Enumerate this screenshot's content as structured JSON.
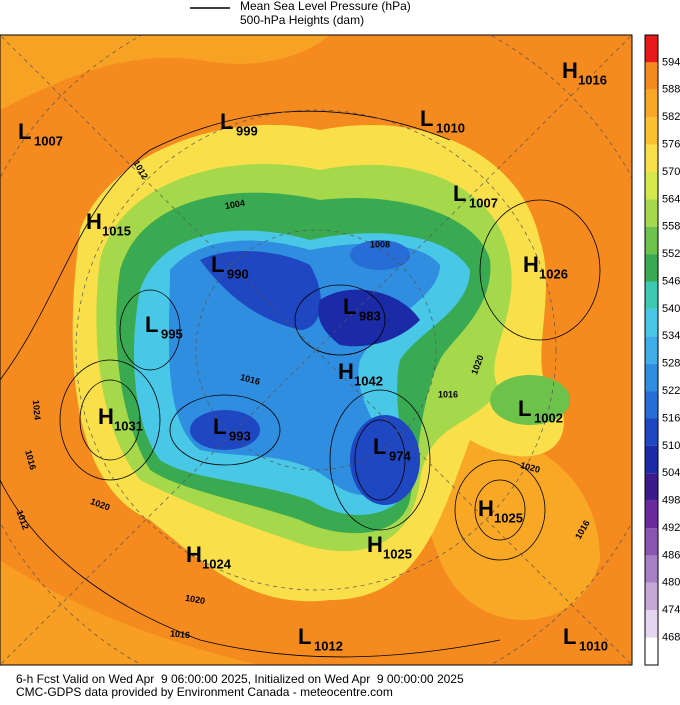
{
  "legend": {
    "lines": [
      "Mean Sea Level Pressure (hPa)",
      "500-hPa Heights (dam)"
    ]
  },
  "colorbar": {
    "ticks": [
      594,
      588,
      582,
      576,
      570,
      564,
      558,
      552,
      546,
      540,
      534,
      528,
      522,
      516,
      510,
      504,
      498,
      492,
      486,
      480,
      474,
      468
    ],
    "colors": [
      "#e8191b",
      "#f58a1f",
      "#f9a825",
      "#fbc02d",
      "#f9e04a",
      "#d6e94c",
      "#a6d84b",
      "#6cc24a",
      "#3aaa52",
      "#3ccab2",
      "#48c7e6",
      "#3fade8",
      "#2f8ee0",
      "#286cd6",
      "#1f47c2",
      "#1b2aa6",
      "#3b1a8c",
      "#6a2a9c",
      "#8a55b0",
      "#a77fc4",
      "#c4a8d6",
      "#e4d6ee"
    ]
  },
  "centers": [
    {
      "kind": "H",
      "value": 1016
    },
    {
      "kind": "L",
      "value": 1007
    },
    {
      "kind": "L",
      "value": 999
    },
    {
      "kind": "L",
      "value": 1010
    },
    {
      "kind": "L",
      "value": 1007
    },
    {
      "kind": "H",
      "value": 1015
    },
    {
      "kind": "H",
      "value": 1026
    },
    {
      "kind": "L",
      "value": 990
    },
    {
      "kind": "L",
      "value": 995
    },
    {
      "kind": "L",
      "value": 983
    },
    {
      "kind": "H",
      "value": 1042
    },
    {
      "kind": "H",
      "value": 1031
    },
    {
      "kind": "L",
      "value": 1002
    },
    {
      "kind": "L",
      "value": 993
    },
    {
      "kind": "L",
      "value": 974
    },
    {
      "kind": "H",
      "value": 1025
    },
    {
      "kind": "H",
      "value": 1025
    },
    {
      "kind": "H",
      "value": 1024
    },
    {
      "kind": "L",
      "value": 1012
    },
    {
      "kind": "L",
      "value": 1010
    }
  ],
  "isobar_labels": [
    1012,
    1016,
    1020,
    1024,
    1020,
    1016,
    1016,
    1020,
    1016,
    1020,
    1004,
    1008,
    1016,
    1012
  ],
  "footer": {
    "lines": [
      "6-h Fcst Valid on Wed Apr  9 06:00:00 2025, Initialized on Wed Apr  9 00:00:00 2025",
      "CMC-GDPS data provided by Environment Canada - meteocentre.com"
    ]
  }
}
